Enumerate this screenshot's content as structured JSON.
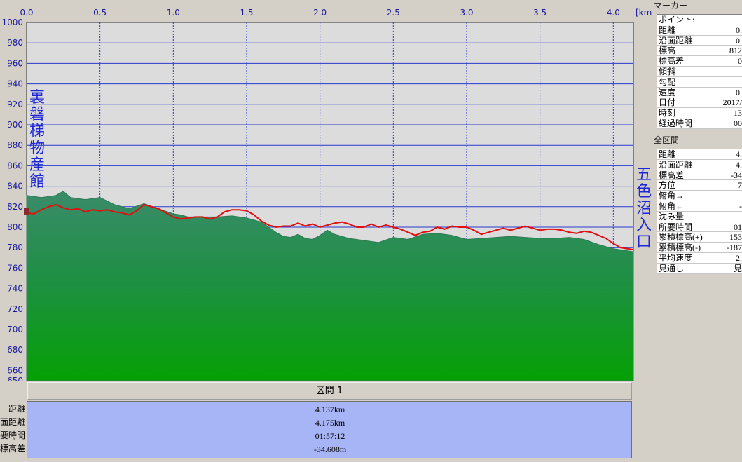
{
  "chart_data": {
    "type": "area",
    "x_unit": "[km]",
    "xlim": [
      0,
      4.137
    ],
    "ylim": [
      650,
      1000
    ],
    "x_ticks": [
      "0.0",
      "0.5",
      "1.0",
      "1.5",
      "2.0",
      "2.5",
      "3.0",
      "3.5",
      "4.0"
    ],
    "y_ticks": [
      "1000",
      "980",
      "960",
      "940",
      "920",
      "900",
      "880",
      "860",
      "840",
      "820",
      "800",
      "780",
      "760",
      "740",
      "720",
      "700",
      "680",
      "660",
      "650"
    ],
    "start_label": "裏磐梯物産館",
    "end_label": "五色沼入口",
    "series": [
      {
        "x": [
          0,
          0.1,
          0.2,
          0.25,
          0.3,
          0.4,
          0.5,
          0.6,
          0.7,
          0.8,
          0.9,
          1.0,
          1.05,
          1.1,
          1.2,
          1.3,
          1.4,
          1.5,
          1.6,
          1.7,
          1.75,
          1.8,
          1.85,
          1.9,
          1.95,
          2.0,
          2.05,
          2.1,
          2.2,
          2.3,
          2.4,
          2.5,
          2.6,
          2.7,
          2.8,
          2.9,
          3.0,
          3.1,
          3.2,
          3.3,
          3.4,
          3.5,
          3.6,
          3.7,
          3.8,
          3.9,
          4.0,
          4.137
        ],
        "values": [
          831,
          829,
          831,
          835,
          829,
          827,
          829,
          822,
          818,
          823,
          818,
          813,
          812,
          810,
          810,
          810,
          811,
          809,
          805,
          795,
          791,
          790,
          793,
          789,
          788,
          792,
          797,
          793,
          789,
          787,
          785,
          790,
          788,
          793,
          794,
          792,
          788,
          789,
          790,
          791,
          790,
          789,
          789,
          790,
          788,
          783,
          779,
          776
        ]
      },
      {
        "x": [
          0,
          0.05,
          0.1,
          0.15,
          0.2,
          0.25,
          0.3,
          0.35,
          0.4,
          0.45,
          0.5,
          0.55,
          0.6,
          0.65,
          0.7,
          0.75,
          0.8,
          0.85,
          0.9,
          0.95,
          1.0,
          1.05,
          1.1,
          1.15,
          1.2,
          1.25,
          1.3,
          1.35,
          1.4,
          1.45,
          1.5,
          1.55,
          1.6,
          1.65,
          1.7,
          1.75,
          1.8,
          1.85,
          1.9,
          1.95,
          2.0,
          2.05,
          2.1,
          2.15,
          2.2,
          2.25,
          2.3,
          2.35,
          2.4,
          2.45,
          2.5,
          2.55,
          2.6,
          2.65,
          2.7,
          2.75,
          2.8,
          2.85,
          2.9,
          2.95,
          3.0,
          3.05,
          3.1,
          3.15,
          3.2,
          3.25,
          3.3,
          3.35,
          3.4,
          3.45,
          3.5,
          3.55,
          3.6,
          3.65,
          3.7,
          3.75,
          3.8,
          3.85,
          3.9,
          3.95,
          4.0,
          4.05,
          4.137
        ],
        "values": [
          814,
          813,
          817,
          820,
          822,
          819,
          817,
          818,
          815,
          817,
          816,
          817,
          815,
          814,
          812,
          816,
          822,
          820,
          818,
          814,
          810,
          808,
          809,
          810,
          810,
          808,
          810,
          815,
          817,
          817,
          816,
          812,
          806,
          802,
          800,
          801,
          801,
          804,
          801,
          803,
          800,
          802,
          804,
          805,
          803,
          800,
          800,
          803,
          800,
          802,
          800,
          798,
          795,
          792,
          795,
          796,
          800,
          798,
          801,
          800,
          800,
          797,
          793,
          795,
          797,
          799,
          797,
          799,
          801,
          799,
          797,
          798,
          798,
          797,
          795,
          794,
          796,
          795,
          792,
          789,
          784,
          780,
          778
        ]
      }
    ]
  },
  "marker_panel": {
    "title": "マーカー",
    "rows": [
      {
        "label": "ポイント:",
        "value": ""
      },
      {
        "label": "距離",
        "value": "0."
      },
      {
        "label": "沿面距離",
        "value": "0."
      },
      {
        "label": "標高",
        "value": "812"
      },
      {
        "label": "標高差",
        "value": "0"
      },
      {
        "label": "傾斜",
        "value": ""
      },
      {
        "label": "勾配",
        "value": ""
      },
      {
        "label": "速度",
        "value": "0."
      },
      {
        "label": "日付",
        "value": "2017/"
      },
      {
        "label": "時刻",
        "value": "13"
      },
      {
        "label": "経過時間",
        "value": "00"
      }
    ]
  },
  "all_panel": {
    "title": "全区間",
    "rows": [
      {
        "label": "距離",
        "value": "4."
      },
      {
        "label": "沿面距離",
        "value": "4."
      },
      {
        "label": "標高差",
        "value": "-34"
      },
      {
        "label": "方位",
        "value": "7"
      },
      {
        "label": "俯角→",
        "value": ""
      },
      {
        "label": "俯角←",
        "value": "-"
      },
      {
        "label": "沈み量",
        "value": ""
      },
      {
        "label": "所要時間",
        "value": "01"
      },
      {
        "label": "累積標高(+)",
        "value": "153"
      },
      {
        "label": "累積標高(-)",
        "value": "-187"
      },
      {
        "label": "平均速度",
        "value": "2."
      },
      {
        "label": "見通し",
        "value": "見"
      }
    ]
  },
  "section": {
    "title": "区間 1",
    "rows": [
      {
        "label": "距離",
        "value": "4.137km"
      },
      {
        "label": "沿面距離",
        "value": "4.175km"
      },
      {
        "label": "所要時間",
        "value": "01:57:12"
      },
      {
        "label": "標高差",
        "value": "-34.608m"
      }
    ]
  },
  "colors": {
    "plot_bg": "#dcdcdc",
    "grid": "#2a3ad0",
    "terrain_top": "#3a8c6a",
    "terrain_bottom": "#05a005",
    "track": "#e01010",
    "labels": "#1e28d8"
  }
}
